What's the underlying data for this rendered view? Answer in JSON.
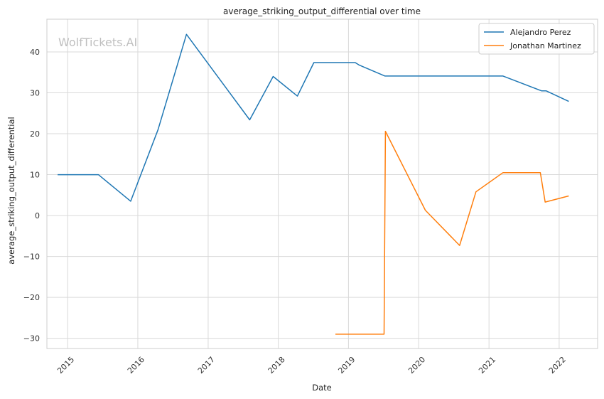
{
  "chart_data": {
    "type": "line",
    "title": "average_striking_output_differential over time",
    "xlabel": "Date",
    "ylabel": "average_striking_output_differential",
    "watermark": "WolfTickets.AI",
    "x_range": [
      "2014-09-15",
      "2022-07-20"
    ],
    "ylim": [
      -32.5,
      48
    ],
    "x_ticks": [
      {
        "date": "2015-01-01",
        "label": "2015"
      },
      {
        "date": "2016-01-01",
        "label": "2016"
      },
      {
        "date": "2017-01-01",
        "label": "2017"
      },
      {
        "date": "2018-01-01",
        "label": "2018"
      },
      {
        "date": "2019-01-01",
        "label": "2019"
      },
      {
        "date": "2020-01-01",
        "label": "2020"
      },
      {
        "date": "2021-01-01",
        "label": "2021"
      },
      {
        "date": "2022-01-01",
        "label": "2022"
      }
    ],
    "y_ticks": [
      {
        "value": -30,
        "label": "−30"
      },
      {
        "value": -20,
        "label": "−20"
      },
      {
        "value": -10,
        "label": "−10"
      },
      {
        "value": 0,
        "label": "0"
      },
      {
        "value": 10,
        "label": "10"
      },
      {
        "value": 20,
        "label": "20"
      },
      {
        "value": 30,
        "label": "30"
      },
      {
        "value": 40,
        "label": "40"
      }
    ],
    "grid": true,
    "legend_position": "top-right",
    "series": [
      {
        "name": "Alejandro Perez",
        "color": "#1f77b4",
        "points": [
          {
            "x": "2014-11-10",
            "y": 10.0
          },
          {
            "x": "2015-06-10",
            "y": 10.0
          },
          {
            "x": "2015-11-25",
            "y": 3.5
          },
          {
            "x": "2016-04-15",
            "y": 21.0
          },
          {
            "x": "2016-09-10",
            "y": 44.3
          },
          {
            "x": "2017-08-05",
            "y": 23.4
          },
          {
            "x": "2017-12-05",
            "y": 34.0
          },
          {
            "x": "2018-04-10",
            "y": 29.2
          },
          {
            "x": "2018-07-05",
            "y": 37.4
          },
          {
            "x": "2019-02-05",
            "y": 37.4
          },
          {
            "x": "2019-02-25",
            "y": 36.8
          },
          {
            "x": "2019-07-10",
            "y": 34.1
          },
          {
            "x": "2021-03-15",
            "y": 34.1
          },
          {
            "x": "2021-10-01",
            "y": 30.5
          },
          {
            "x": "2021-10-25",
            "y": 30.5
          },
          {
            "x": "2022-02-20",
            "y": 27.9
          }
        ]
      },
      {
        "name": "Jonathan Martinez",
        "color": "#ff7f0e",
        "points": [
          {
            "x": "2018-10-25",
            "y": -29.0
          },
          {
            "x": "2019-07-05",
            "y": -29.0
          },
          {
            "x": "2019-07-12",
            "y": 20.6
          },
          {
            "x": "2020-02-05",
            "y": 1.3
          },
          {
            "x": "2020-08-01",
            "y": -7.3
          },
          {
            "x": "2020-10-25",
            "y": 5.8
          },
          {
            "x": "2021-03-15",
            "y": 10.5
          },
          {
            "x": "2021-09-25",
            "y": 10.5
          },
          {
            "x": "2021-10-20",
            "y": 3.3
          },
          {
            "x": "2022-02-20",
            "y": 4.8
          }
        ]
      }
    ]
  }
}
